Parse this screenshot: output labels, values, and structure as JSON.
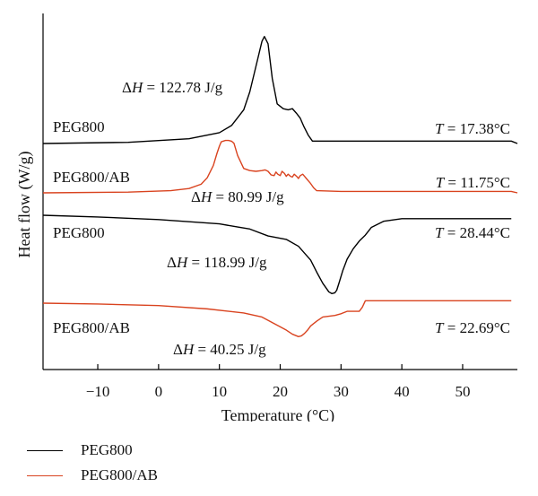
{
  "chart_data": {
    "type": "line",
    "xlabel": "Temperature (°C)",
    "ylabel": "Heat flow (W/g)",
    "xlim": [
      -19,
      59
    ],
    "x_ticks": [
      -10,
      0,
      10,
      20,
      30,
      40,
      50
    ],
    "y_ticks": [],
    "grid": false,
    "legend_position": "bottom-left",
    "legend": [
      {
        "name": "PEG800",
        "color": "#000000"
      },
      {
        "name": "PEG800/AB",
        "color": "#d9431f"
      }
    ],
    "series": [
      {
        "name": "PEG800",
        "color": "#000000",
        "label": "PEG800",
        "annotation": "ΔH = 122.78 J/g",
        "temperature_label": "T = 17.38°C",
        "x": [
          -19,
          -5,
          5,
          10,
          12,
          14,
          15,
          16,
          17,
          17.4,
          18,
          18.7,
          19.5,
          20.5,
          21.3,
          22,
          22.7,
          23.3,
          23.9,
          24.6,
          25.3,
          30,
          45,
          58,
          59
        ],
        "y": [
          0,
          0.1,
          0.4,
          0.9,
          1.5,
          2.8,
          4.3,
          6.4,
          8.5,
          8.9,
          8.3,
          5.4,
          3.3,
          2.9,
          2.8,
          2.9,
          2.5,
          2.1,
          1.4,
          0.7,
          0.2,
          0.2,
          0.2,
          0.2,
          0
        ]
      },
      {
        "name": "PEG800/AB",
        "color": "#d9431f",
        "label": "PEG800/AB",
        "annotation": "ΔH = 80.99 J/g",
        "temperature_label": "T = 11.75°C",
        "x": [
          -19,
          -5,
          2,
          5,
          7,
          8,
          9,
          9.6,
          10,
          10.3,
          10.6,
          11,
          11.5,
          12,
          12.4,
          13,
          14,
          15,
          16,
          17,
          17.5,
          18,
          18.5,
          19,
          19.3,
          19.6,
          20,
          20.3,
          20.7,
          21,
          21.3,
          21.7,
          22,
          22.3,
          22.7,
          23,
          23.3,
          23.7,
          24,
          24.3,
          24.7,
          25,
          25.5,
          26,
          30,
          45,
          58,
          59
        ],
        "y": [
          0,
          0.1,
          0.3,
          0.6,
          1.2,
          2.1,
          3.8,
          5.5,
          6.5,
          7.1,
          7.2,
          7.3,
          7.3,
          7.2,
          6.9,
          5.2,
          3.4,
          3.1,
          3.0,
          3.1,
          3.2,
          3.0,
          2.5,
          2.4,
          2.9,
          2.6,
          2.4,
          3.0,
          2.7,
          2.3,
          2.6,
          2.3,
          2.2,
          2.6,
          2.3,
          2.0,
          2.4,
          2.6,
          2.3,
          2.0,
          1.6,
          1.3,
          0.7,
          0.3,
          0.2,
          0.2,
          0.2,
          0
        ]
      },
      {
        "name": "PEG800",
        "color": "#000000",
        "label": "PEG800",
        "annotation": "ΔH = 118.99 J/g",
        "temperature_label": "T = 28.44°C",
        "x": [
          -19,
          -10,
          0,
          10,
          15,
          18,
          21,
          23,
          25,
          26,
          27,
          28,
          28.5,
          29,
          29.3,
          29.7,
          30.3,
          31,
          32,
          33,
          34,
          35,
          37,
          40,
          50,
          58
        ],
        "y": [
          0,
          -0.2,
          -0.5,
          -1.0,
          -1.6,
          -2.4,
          -2.8,
          -3.6,
          -5.2,
          -6.6,
          -7.9,
          -8.9,
          -9.1,
          -9.0,
          -8.7,
          -7.8,
          -6.4,
          -5.1,
          -3.9,
          -3.0,
          -2.3,
          -1.4,
          -0.7,
          -0.4,
          -0.4,
          -0.4
        ]
      },
      {
        "name": "PEG800/AB",
        "color": "#d9431f",
        "label": "PEG800/AB",
        "annotation": "ΔH = 40.25 J/g",
        "temperature_label": "T = 22.69°C",
        "x": [
          -19,
          -10,
          0,
          8,
          14,
          17,
          19,
          21,
          22,
          23,
          23.5,
          24,
          24.5,
          25,
          26,
          27,
          28,
          29,
          30,
          31,
          32,
          33,
          33.5,
          34,
          36,
          40,
          50,
          58
        ],
        "y": [
          0,
          -0.1,
          -0.3,
          -0.7,
          -1.2,
          -1.7,
          -2.5,
          -3.3,
          -3.8,
          -4.1,
          -4.0,
          -3.7,
          -3.3,
          -2.8,
          -2.2,
          -1.7,
          -1.6,
          -1.5,
          -1.3,
          -1.0,
          -1.0,
          -1.0,
          -0.5,
          0.3,
          0.3,
          0.3,
          0.3,
          0.3
        ]
      }
    ]
  }
}
